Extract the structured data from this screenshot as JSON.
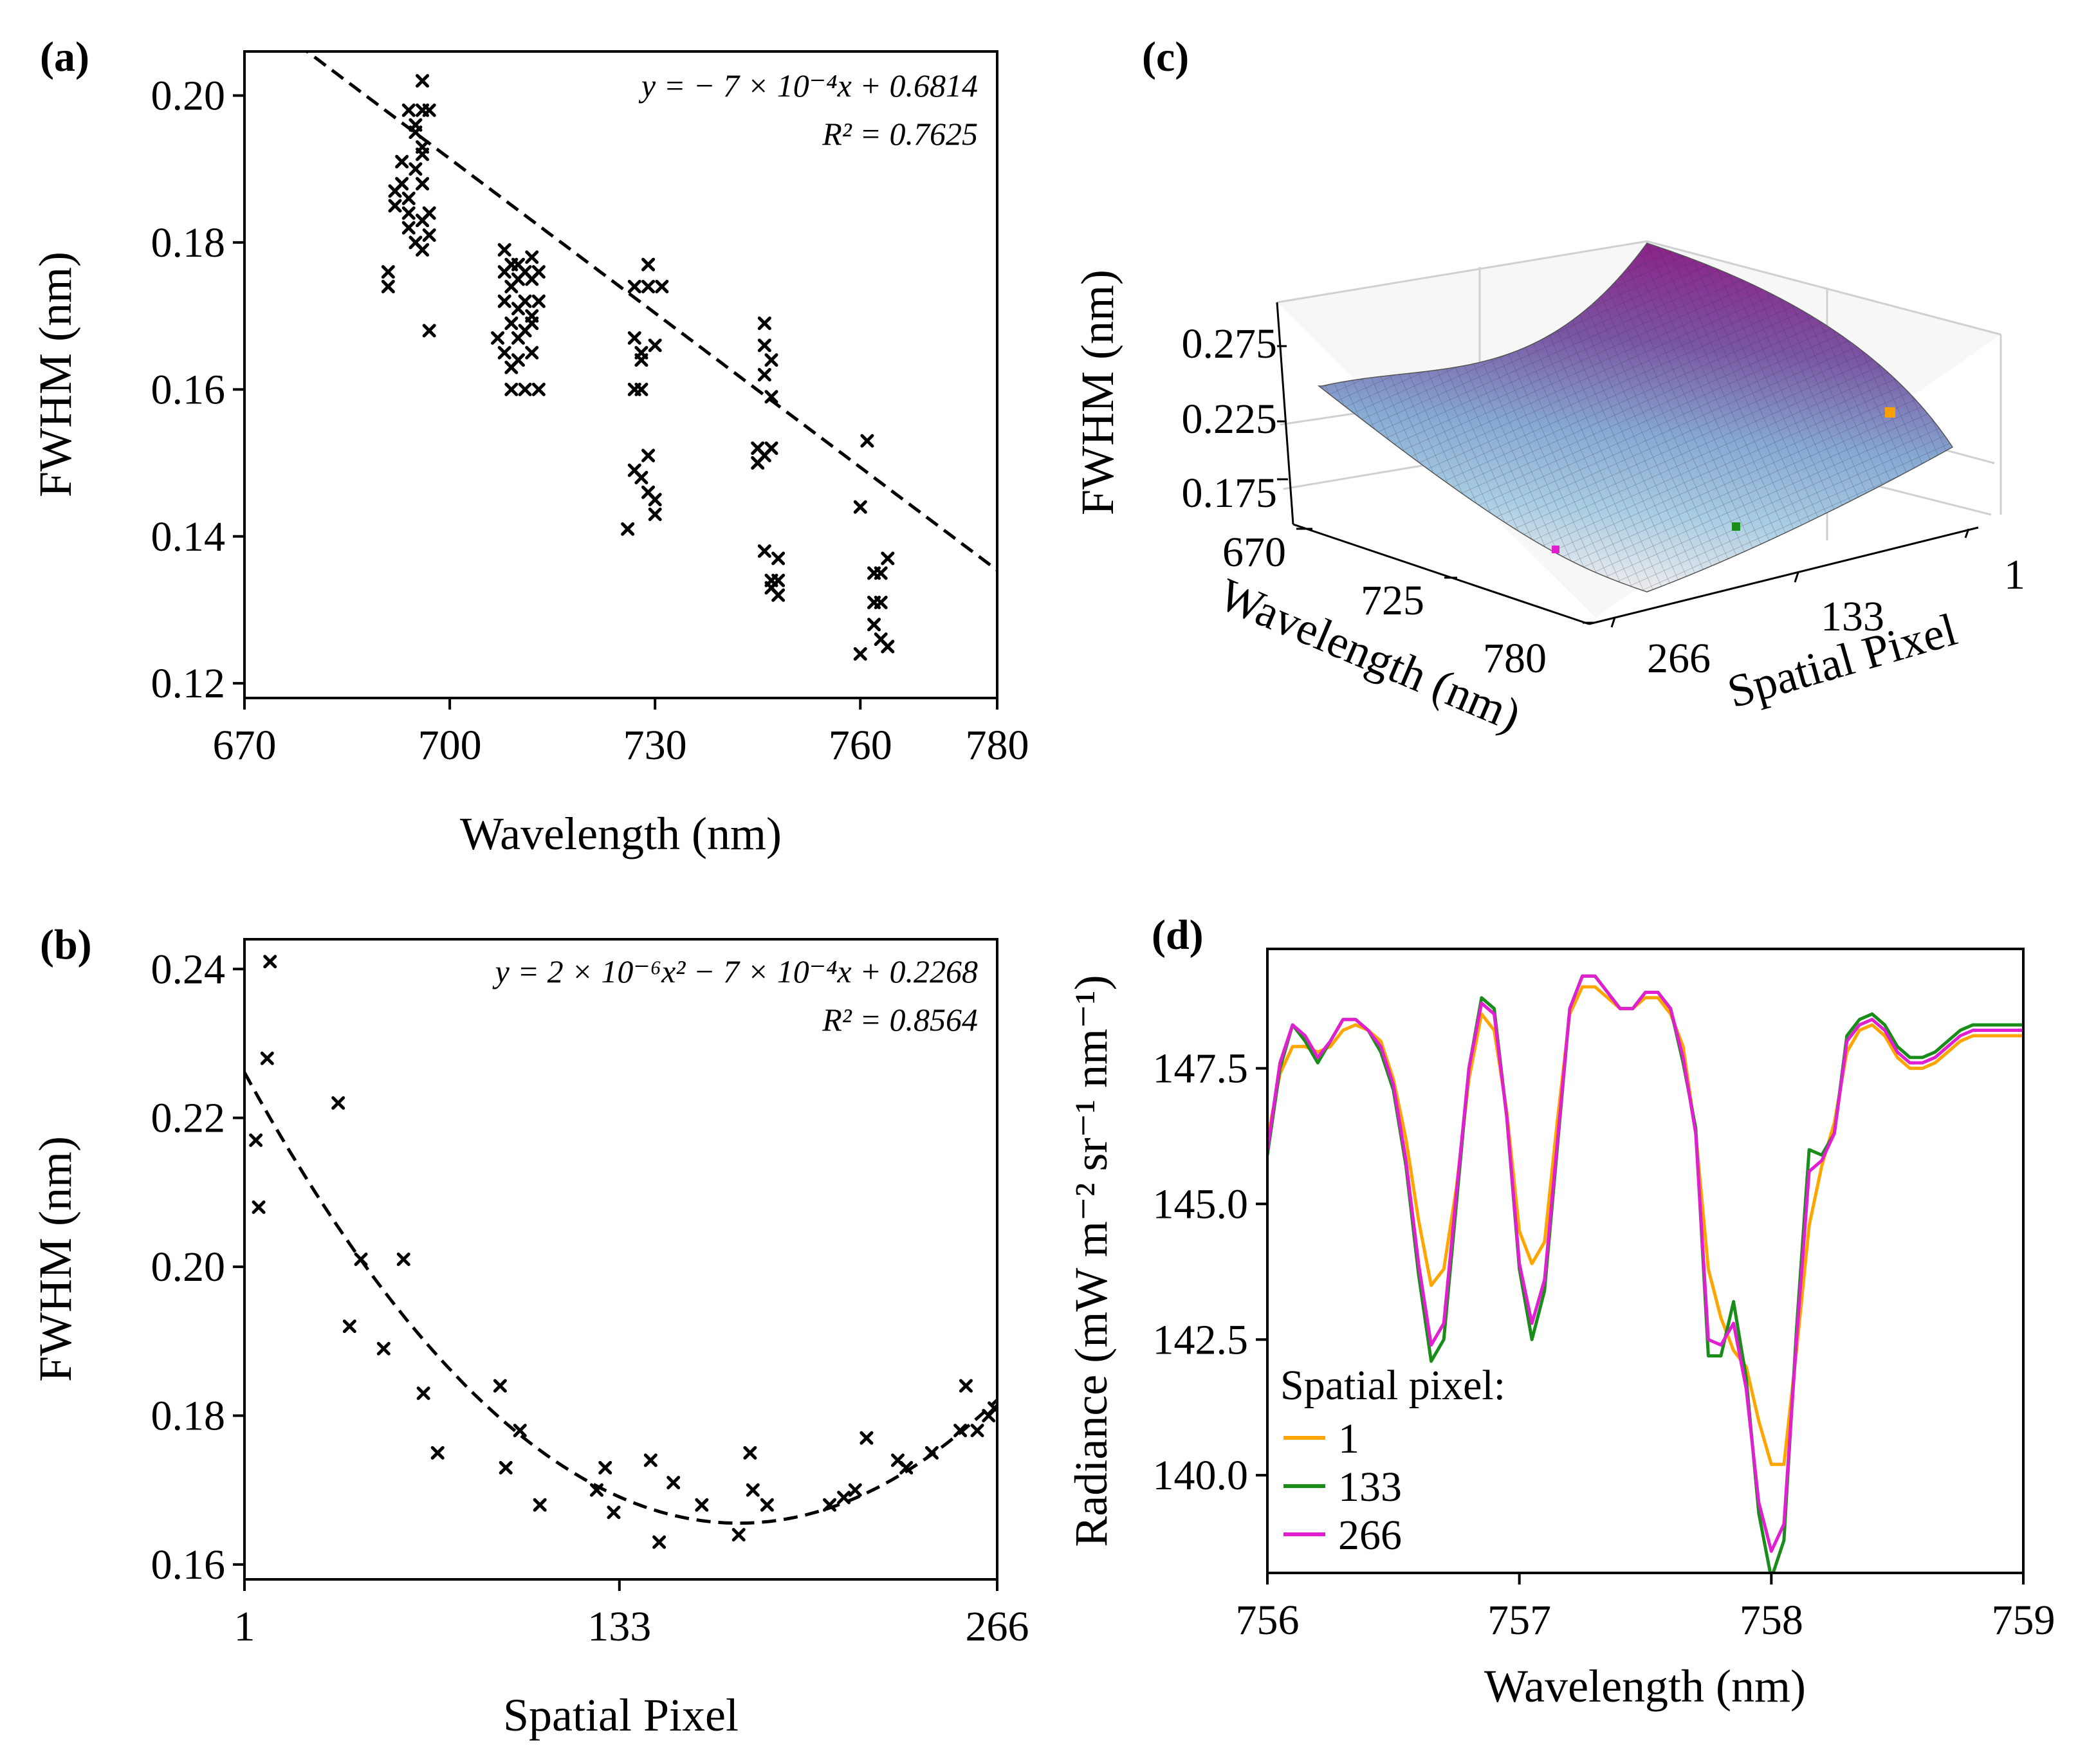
{
  "chart_data": [
    {
      "id": "a",
      "panel_label": "(a)",
      "type": "scatter",
      "xlabel": "Wavelength (nm)",
      "ylabel": "FWHM (nm)",
      "xlim": [
        670,
        780
      ],
      "ylim": [
        0.118,
        0.206
      ],
      "xticks": [
        670,
        700,
        730,
        760,
        780
      ],
      "yticks": [
        0.12,
        0.14,
        0.16,
        0.18,
        0.2
      ],
      "ytick_labels": [
        "0.12",
        "0.14",
        "0.16",
        "0.18",
        "0.20"
      ],
      "annotation": {
        "eq": "y = − 7 × 10⁻⁴x + 0.6814",
        "r2": "R² = 0.7625"
      },
      "fit": {
        "kind": "linear",
        "slope": -0.0007,
        "intercept": 0.6814
      },
      "points": [
        [
          691,
          0.176
        ],
        [
          691,
          0.174
        ],
        [
          692,
          0.187
        ],
        [
          692,
          0.185
        ],
        [
          693,
          0.191
        ],
        [
          693,
          0.188
        ],
        [
          694,
          0.184
        ],
        [
          694,
          0.182
        ],
        [
          694,
          0.186
        ],
        [
          694,
          0.198
        ],
        [
          695,
          0.195
        ],
        [
          695,
          0.196
        ],
        [
          695,
          0.19
        ],
        [
          695,
          0.18
        ],
        [
          696,
          0.198
        ],
        [
          696,
          0.202
        ],
        [
          696,
          0.193
        ],
        [
          696,
          0.188
        ],
        [
          696,
          0.183
        ],
        [
          696,
          0.179
        ],
        [
          697,
          0.198
        ],
        [
          697,
          0.184
        ],
        [
          697,
          0.168
        ],
        [
          697,
          0.181
        ],
        [
          696,
          0.192
        ],
        [
          707,
          0.167
        ],
        [
          708,
          0.176
        ],
        [
          708,
          0.172
        ],
        [
          708,
          0.165
        ],
        [
          708,
          0.179
        ],
        [
          709,
          0.174
        ],
        [
          709,
          0.169
        ],
        [
          709,
          0.163
        ],
        [
          709,
          0.177
        ],
        [
          709,
          0.16
        ],
        [
          710,
          0.177
        ],
        [
          710,
          0.171
        ],
        [
          710,
          0.167
        ],
        [
          710,
          0.175
        ],
        [
          710,
          0.164
        ],
        [
          711,
          0.176
        ],
        [
          711,
          0.172
        ],
        [
          711,
          0.168
        ],
        [
          711,
          0.16
        ],
        [
          712,
          0.175
        ],
        [
          712,
          0.17
        ],
        [
          712,
          0.165
        ],
        [
          712,
          0.169
        ],
        [
          713,
          0.176
        ],
        [
          713,
          0.172
        ],
        [
          713,
          0.16
        ],
        [
          712,
          0.178
        ],
        [
          726,
          0.141
        ],
        [
          727,
          0.167
        ],
        [
          727,
          0.16
        ],
        [
          727,
          0.149
        ],
        [
          727,
          0.174
        ],
        [
          728,
          0.164
        ],
        [
          728,
          0.16
        ],
        [
          728,
          0.148
        ],
        [
          728,
          0.165
        ],
        [
          729,
          0.177
        ],
        [
          729,
          0.151
        ],
        [
          729,
          0.146
        ],
        [
          729,
          0.174
        ],
        [
          730,
          0.166
        ],
        [
          730,
          0.145
        ],
        [
          730,
          0.143
        ],
        [
          731,
          0.174
        ],
        [
          745,
          0.152
        ],
        [
          745,
          0.15
        ],
        [
          746,
          0.138
        ],
        [
          746,
          0.151
        ],
        [
          746,
          0.162
        ],
        [
          746,
          0.166
        ],
        [
          746,
          0.169
        ],
        [
          747,
          0.164
        ],
        [
          747,
          0.159
        ],
        [
          747,
          0.152
        ],
        [
          747,
          0.134
        ],
        [
          747,
          0.133
        ],
        [
          748,
          0.134
        ],
        [
          748,
          0.137
        ],
        [
          748,
          0.132
        ],
        [
          760,
          0.144
        ],
        [
          760,
          0.124
        ],
        [
          761,
          0.153
        ],
        [
          762,
          0.135
        ],
        [
          762,
          0.131
        ],
        [
          762,
          0.128
        ],
        [
          763,
          0.126
        ],
        [
          763,
          0.131
        ],
        [
          763,
          0.135
        ],
        [
          764,
          0.137
        ],
        [
          764,
          0.125
        ]
      ]
    },
    {
      "id": "b",
      "panel_label": "(b)",
      "type": "scatter",
      "xlabel": "Spatial Pixel",
      "ylabel": "FWHM (nm)",
      "xlim": [
        1,
        266
      ],
      "ylim": [
        0.158,
        0.244
      ],
      "xticks": [
        1,
        133,
        266
      ],
      "yticks": [
        0.16,
        0.18,
        0.2,
        0.22,
        0.24
      ],
      "ytick_labels": [
        "0.16",
        "0.18",
        "0.20",
        "0.22",
        "0.24"
      ],
      "annotation": {
        "eq": "y = 2 × 10⁻⁶x² − 7 × 10⁻⁴x + 0.2268",
        "r2": "R² = 0.8564"
      },
      "fit": {
        "kind": "quadratic",
        "a": 2e-06,
        "b": -0.0007,
        "c": 0.2268
      },
      "points": [
        [
          5,
          0.217
        ],
        [
          6,
          0.208
        ],
        [
          9,
          0.228
        ],
        [
          10,
          0.241
        ],
        [
          34,
          0.222
        ],
        [
          38,
          0.192
        ],
        [
          42,
          0.201
        ],
        [
          50,
          0.189
        ],
        [
          57,
          0.201
        ],
        [
          64,
          0.183
        ],
        [
          69,
          0.175
        ],
        [
          91,
          0.184
        ],
        [
          93,
          0.173
        ],
        [
          98,
          0.178
        ],
        [
          105,
          0.168
        ],
        [
          125,
          0.17
        ],
        [
          128,
          0.173
        ],
        [
          131,
          0.167
        ],
        [
          144,
          0.174
        ],
        [
          147,
          0.163
        ],
        [
          152,
          0.171
        ],
        [
          162,
          0.168
        ],
        [
          175,
          0.164
        ],
        [
          179,
          0.175
        ],
        [
          180,
          0.17
        ],
        [
          185,
          0.168
        ],
        [
          207,
          0.168
        ],
        [
          212,
          0.169
        ],
        [
          216,
          0.17
        ],
        [
          220,
          0.177
        ],
        [
          231,
          0.174
        ],
        [
          234,
          0.173
        ],
        [
          243,
          0.175
        ],
        [
          253,
          0.178
        ],
        [
          255,
          0.184
        ],
        [
          259,
          0.178
        ],
        [
          263,
          0.18
        ],
        [
          265,
          0.181
        ]
      ]
    },
    {
      "id": "c",
      "panel_label": "(c)",
      "type": "surface3d",
      "xlabel": "Spatial Pixel",
      "ylabel": "Wavelength (nm)",
      "zlabel": "FWHM (nm)",
      "x_ticks": [
        1,
        133,
        266
      ],
      "y_ticks": [
        670,
        725,
        780
      ],
      "z_ticks": [
        0.175,
        0.225,
        0.275
      ],
      "colormap": [
        "#e8e8ea",
        "#9ec5e0",
        "#7fa3cf",
        "#7c5aa6",
        "#8e2a8a"
      ],
      "markers": [
        {
          "pixel": 1,
          "color": "#ff9f00"
        },
        {
          "pixel": 133,
          "color": "#1a8c1a"
        },
        {
          "pixel": 266,
          "color": "#e020d0"
        }
      ]
    },
    {
      "id": "d",
      "panel_label": "(d)",
      "type": "line",
      "xlabel": "Wavelength (nm)",
      "ylabel": "Radiance (mW m⁻² sr⁻¹ nm⁻¹)",
      "xlim": [
        756,
        759
      ],
      "ylim": [
        138.2,
        149.7
      ],
      "xticks": [
        756,
        757,
        758,
        759
      ],
      "yticks": [
        140.0,
        142.5,
        145.0,
        147.5
      ],
      "ytick_labels": [
        "140.0",
        "142.5",
        "145.0",
        "147.5"
      ],
      "legend_title": "Spatial pixel:",
      "legend_position": "lower-left",
      "x": [
        756.0,
        756.05,
        756.1,
        756.15,
        756.2,
        756.25,
        756.3,
        756.35,
        756.4,
        756.45,
        756.5,
        756.55,
        756.6,
        756.65,
        756.7,
        756.75,
        756.8,
        756.85,
        756.9,
        756.95,
        757.0,
        757.05,
        757.1,
        757.15,
        757.2,
        757.25,
        757.3,
        757.35,
        757.4,
        757.45,
        757.5,
        757.55,
        757.6,
        757.65,
        757.7,
        757.75,
        757.8,
        757.85,
        757.9,
        757.95,
        758.0,
        758.05,
        758.1,
        758.15,
        758.2,
        758.25,
        758.3,
        758.35,
        758.4,
        758.45,
        758.5,
        758.55,
        758.6,
        758.65,
        758.7,
        758.75,
        758.8,
        758.85,
        758.9,
        758.95,
        759.0
      ],
      "series": [
        {
          "name": "1",
          "color": "#ffa500",
          "values": [
            146.2,
            147.4,
            147.9,
            147.9,
            147.8,
            147.9,
            148.2,
            148.3,
            148.2,
            148.0,
            147.3,
            146.2,
            144.7,
            143.5,
            143.8,
            145.3,
            147.3,
            148.5,
            148.2,
            146.7,
            144.5,
            143.9,
            144.3,
            146.5,
            148.5,
            149.0,
            149.0,
            148.8,
            148.6,
            148.6,
            148.8,
            148.8,
            148.5,
            147.9,
            146.3,
            143.8,
            142.9,
            142.3,
            142.0,
            141.0,
            140.2,
            140.2,
            142.3,
            144.6,
            145.7,
            146.5,
            147.8,
            148.2,
            148.3,
            148.1,
            147.7,
            147.5,
            147.5,
            147.6,
            147.8,
            148.0,
            148.1,
            148.1,
            148.1,
            148.1,
            148.1
          ]
        },
        {
          "name": "133",
          "color": "#1a8c1a",
          "values": [
            145.9,
            147.5,
            148.3,
            148.0,
            147.6,
            148.0,
            148.4,
            148.4,
            148.2,
            147.8,
            147.1,
            145.7,
            143.7,
            142.1,
            142.5,
            145.0,
            147.5,
            148.8,
            148.6,
            146.6,
            143.8,
            142.5,
            143.4,
            146.0,
            148.6,
            149.2,
            149.2,
            148.9,
            148.6,
            148.6,
            148.9,
            148.9,
            148.6,
            147.6,
            146.4,
            142.2,
            142.2,
            143.2,
            141.8,
            139.3,
            138.1,
            138.8,
            142.7,
            146.0,
            145.9,
            146.3,
            148.1,
            148.4,
            148.5,
            148.3,
            147.9,
            147.7,
            147.7,
            147.8,
            148.0,
            148.2,
            148.3,
            148.3,
            148.3,
            148.3,
            148.3
          ]
        },
        {
          "name": "266",
          "color": "#e020d0",
          "values": [
            146.0,
            147.6,
            148.3,
            148.1,
            147.7,
            148.0,
            148.4,
            148.4,
            148.2,
            147.9,
            147.2,
            145.8,
            143.9,
            142.4,
            142.8,
            145.2,
            147.5,
            148.7,
            148.5,
            146.6,
            143.9,
            142.8,
            143.6,
            146.1,
            148.6,
            149.2,
            149.2,
            148.9,
            148.6,
            148.6,
            148.9,
            148.9,
            148.6,
            147.7,
            146.3,
            142.5,
            142.4,
            142.8,
            141.6,
            139.5,
            138.6,
            139.1,
            142.5,
            145.6,
            145.8,
            146.3,
            148.0,
            148.3,
            148.4,
            148.2,
            147.8,
            147.6,
            147.6,
            147.7,
            147.9,
            148.1,
            148.2,
            148.2,
            148.2,
            148.2,
            148.2
          ]
        }
      ]
    }
  ]
}
